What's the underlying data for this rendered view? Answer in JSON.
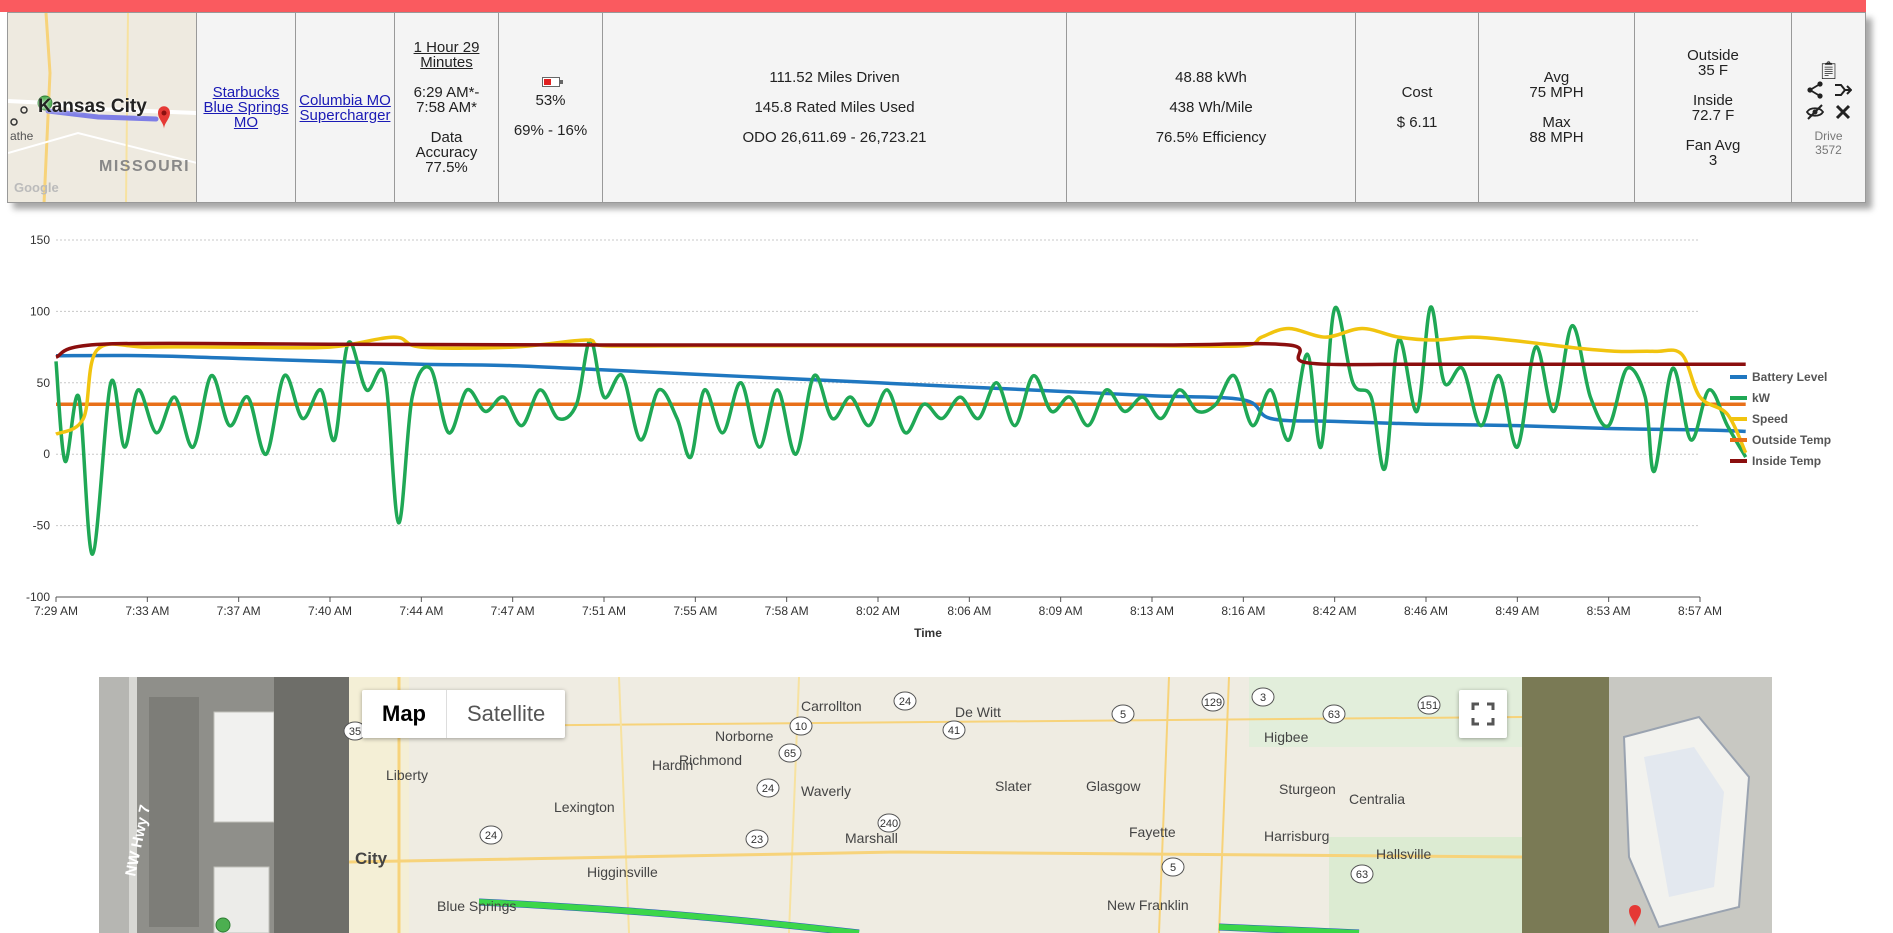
{
  "summary": {
    "minimap": {
      "city_label": "Kansas City",
      "state_label": "MISSOURI",
      "partial_label": "athe",
      "attribution": "Google"
    },
    "start_location": [
      "Starbucks",
      "Blue Springs",
      "MO"
    ],
    "end_location": [
      "Columbia MO",
      "Supercharger"
    ],
    "duration": {
      "link": [
        "1 Hour 29",
        "Minutes"
      ],
      "times": [
        "6:29 AM*-",
        "7:58 AM*"
      ],
      "accuracy": [
        "Data",
        "Accuracy",
        "77.5%"
      ]
    },
    "battery": {
      "fill_percent": 53,
      "level": "53%",
      "range": "69% - 16%"
    },
    "distance": {
      "driven": "111.52 Miles Driven",
      "rated": "145.8 Rated Miles Used",
      "odo": "ODO 26,611.69 - 26,723.21"
    },
    "energy": {
      "kwh": "48.88 kWh",
      "rate": "438 Wh/Mile",
      "efficiency": "76.5% Efficiency"
    },
    "cost": {
      "label": "Cost",
      "value": "$ 6.11"
    },
    "speed": {
      "avg_label": "Avg",
      "avg_value": "75 MPH",
      "max_label": "Max",
      "max_value": "88 MPH"
    },
    "temps": {
      "outside_label": "Outside",
      "outside_value": "35 F",
      "inside_label": "Inside",
      "inside_value": "72.7 F",
      "fan_label": "Fan Avg",
      "fan_value": "3"
    },
    "actions": {
      "icons": [
        "clipboard-icon",
        "share-icon",
        "merge-icon",
        "hide-icon",
        "delete-icon"
      ],
      "drive_label": "Drive",
      "drive_number": "3572"
    },
    "colors": {
      "topbar": "#fa5a5f"
    }
  },
  "chart_data": {
    "type": "line",
    "xlabel": "Time",
    "ylabel": "",
    "ylim": [
      -100,
      150
    ],
    "yticks": [
      -100,
      -50,
      0,
      50,
      100,
      150
    ],
    "xticks": [
      "7:29 AM",
      "7:33 AM",
      "7:37 AM",
      "7:40 AM",
      "7:44 AM",
      "7:47 AM",
      "7:51 AM",
      "7:55 AM",
      "7:58 AM",
      "8:02 AM",
      "8:06 AM",
      "8:09 AM",
      "8:13 AM",
      "8:16 AM",
      "8:42 AM",
      "8:46 AM",
      "8:49 AM",
      "8:53 AM",
      "8:57 AM"
    ],
    "grid": true,
    "legend_position": "right",
    "series": [
      {
        "name": "Battery Level",
        "color": "#1f77c0",
        "points": [
          [
            0,
            69
          ],
          [
            1,
            69
          ],
          [
            2,
            67
          ],
          [
            3,
            65
          ],
          [
            4,
            63
          ],
          [
            5,
            62
          ],
          [
            6,
            59
          ],
          [
            7,
            56
          ],
          [
            8,
            53
          ],
          [
            9,
            50
          ],
          [
            10,
            47
          ],
          [
            11,
            44
          ],
          [
            12,
            41
          ],
          [
            13,
            38
          ],
          [
            13.3,
            25
          ],
          [
            14,
            23
          ],
          [
            15,
            21
          ],
          [
            16,
            20
          ],
          [
            17,
            18
          ],
          [
            18,
            17
          ],
          [
            18.5,
            16
          ]
        ]
      },
      {
        "name": "kW",
        "color": "#1fa855",
        "points": [
          [
            0,
            65
          ],
          [
            0.1,
            -5
          ],
          [
            0.25,
            40
          ],
          [
            0.4,
            -70
          ],
          [
            0.6,
            50
          ],
          [
            0.75,
            5
          ],
          [
            0.9,
            45
          ],
          [
            1.1,
            15
          ],
          [
            1.3,
            40
          ],
          [
            1.5,
            5
          ],
          [
            1.7,
            55
          ],
          [
            1.9,
            20
          ],
          [
            2.1,
            40
          ],
          [
            2.3,
            0
          ],
          [
            2.5,
            55
          ],
          [
            2.7,
            25
          ],
          [
            2.9,
            45
          ],
          [
            3.05,
            10
          ],
          [
            3.2,
            78
          ],
          [
            3.4,
            45
          ],
          [
            3.6,
            55
          ],
          [
            3.75,
            -48
          ],
          [
            3.9,
            40
          ],
          [
            4.1,
            60
          ],
          [
            4.3,
            15
          ],
          [
            4.5,
            45
          ],
          [
            4.7,
            30
          ],
          [
            4.9,
            40
          ],
          [
            5.1,
            20
          ],
          [
            5.3,
            45
          ],
          [
            5.5,
            25
          ],
          [
            5.7,
            35
          ],
          [
            5.85,
            80
          ],
          [
            6.0,
            40
          ],
          [
            6.2,
            55
          ],
          [
            6.4,
            10
          ],
          [
            6.6,
            45
          ],
          [
            6.8,
            25
          ],
          [
            6.95,
            -2
          ],
          [
            7.1,
            45
          ],
          [
            7.3,
            15
          ],
          [
            7.5,
            50
          ],
          [
            7.7,
            5
          ],
          [
            7.9,
            45
          ],
          [
            8.1,
            0
          ],
          [
            8.3,
            55
          ],
          [
            8.5,
            25
          ],
          [
            8.7,
            40
          ],
          [
            8.9,
            20
          ],
          [
            9.1,
            45
          ],
          [
            9.3,
            15
          ],
          [
            9.5,
            35
          ],
          [
            9.7,
            25
          ],
          [
            9.9,
            40
          ],
          [
            10.1,
            25
          ],
          [
            10.3,
            50
          ],
          [
            10.5,
            20
          ],
          [
            10.7,
            55
          ],
          [
            10.9,
            30
          ],
          [
            11.1,
            40
          ],
          [
            11.3,
            20
          ],
          [
            11.5,
            45
          ],
          [
            11.7,
            30
          ],
          [
            11.9,
            40
          ],
          [
            12.1,
            25
          ],
          [
            12.3,
            45
          ],
          [
            12.5,
            30
          ],
          [
            12.7,
            35
          ],
          [
            12.9,
            55
          ],
          [
            13.1,
            20
          ],
          [
            13.3,
            45
          ],
          [
            13.5,
            10
          ],
          [
            13.7,
            70
          ],
          [
            13.85,
            5
          ],
          [
            14.0,
            102
          ],
          [
            14.2,
            50
          ],
          [
            14.4,
            40
          ],
          [
            14.55,
            -10
          ],
          [
            14.7,
            80
          ],
          [
            14.9,
            30
          ],
          [
            15.05,
            103
          ],
          [
            15.2,
            50
          ],
          [
            15.4,
            60
          ],
          [
            15.6,
            20
          ],
          [
            15.8,
            55
          ],
          [
            16.0,
            5
          ],
          [
            16.2,
            75
          ],
          [
            16.4,
            30
          ],
          [
            16.6,
            90
          ],
          [
            16.8,
            40
          ],
          [
            17.0,
            20
          ],
          [
            17.2,
            60
          ],
          [
            17.4,
            40
          ],
          [
            17.5,
            -12
          ],
          [
            17.7,
            60
          ],
          [
            17.9,
            10
          ],
          [
            18.1,
            45
          ],
          [
            18.3,
            20
          ],
          [
            18.5,
            -2
          ]
        ]
      },
      {
        "name": "Speed",
        "color": "#f1c40f",
        "points": [
          [
            0,
            14
          ],
          [
            0.3,
            25
          ],
          [
            0.45,
            73
          ],
          [
            1,
            75
          ],
          [
            2,
            75
          ],
          [
            3,
            75
          ],
          [
            3.7,
            82
          ],
          [
            4,
            75
          ],
          [
            5,
            75
          ],
          [
            5.8,
            80
          ],
          [
            6,
            76
          ],
          [
            7,
            76
          ],
          [
            8,
            76
          ],
          [
            9,
            76
          ],
          [
            10,
            76
          ],
          [
            11,
            76
          ],
          [
            12,
            76
          ],
          [
            13,
            76
          ],
          [
            13.2,
            82
          ],
          [
            13.5,
            88
          ],
          [
            13.9,
            82
          ],
          [
            14.3,
            88
          ],
          [
            14.7,
            82
          ],
          [
            15.1,
            80
          ],
          [
            15.5,
            82
          ],
          [
            15.9,
            80
          ],
          [
            16.3,
            77
          ],
          [
            16.7,
            74
          ],
          [
            17.1,
            72
          ],
          [
            17.5,
            72
          ],
          [
            17.8,
            70
          ],
          [
            18.0,
            40
          ],
          [
            18.3,
            28
          ],
          [
            18.5,
            1
          ]
        ]
      },
      {
        "name": "Outside Temp",
        "color": "#e8701a",
        "points": [
          [
            0,
            35
          ],
          [
            18.5,
            35
          ]
        ]
      },
      {
        "name": "Inside Temp",
        "color": "#8b0e0e",
        "points": [
          [
            0,
            68
          ],
          [
            0.5,
            77
          ],
          [
            3,
            77
          ],
          [
            6,
            76.5
          ],
          [
            9,
            76.5
          ],
          [
            12,
            76.5
          ],
          [
            13.5,
            76.5
          ],
          [
            13.7,
            64
          ],
          [
            15,
            63
          ],
          [
            17,
            63
          ],
          [
            18.5,
            63
          ]
        ]
      }
    ]
  },
  "bigmap": {
    "controls": {
      "map_label": "Map",
      "satellite_label": "Satellite"
    },
    "sat_left_label": "NW Hwy 7",
    "places": [
      "Carrollton",
      "De Witt",
      "Norborne",
      "Richmond",
      "Hardin",
      "Higbee",
      "Liberty",
      "Waverly",
      "Slater",
      "Glasgow",
      "Sturgeon",
      "Centralia",
      "Lexington",
      "Marshall",
      "Fayette",
      "Harrisburg",
      "Hallsville",
      "City",
      "Higginsville",
      "Blue Springs",
      "New Franklin"
    ],
    "route_numbers": [
      "24",
      "10",
      "41",
      "5",
      "129",
      "3",
      "63",
      "151",
      "65",
      "35",
      "24",
      "240",
      "24",
      "23",
      "5",
      "63"
    ]
  }
}
